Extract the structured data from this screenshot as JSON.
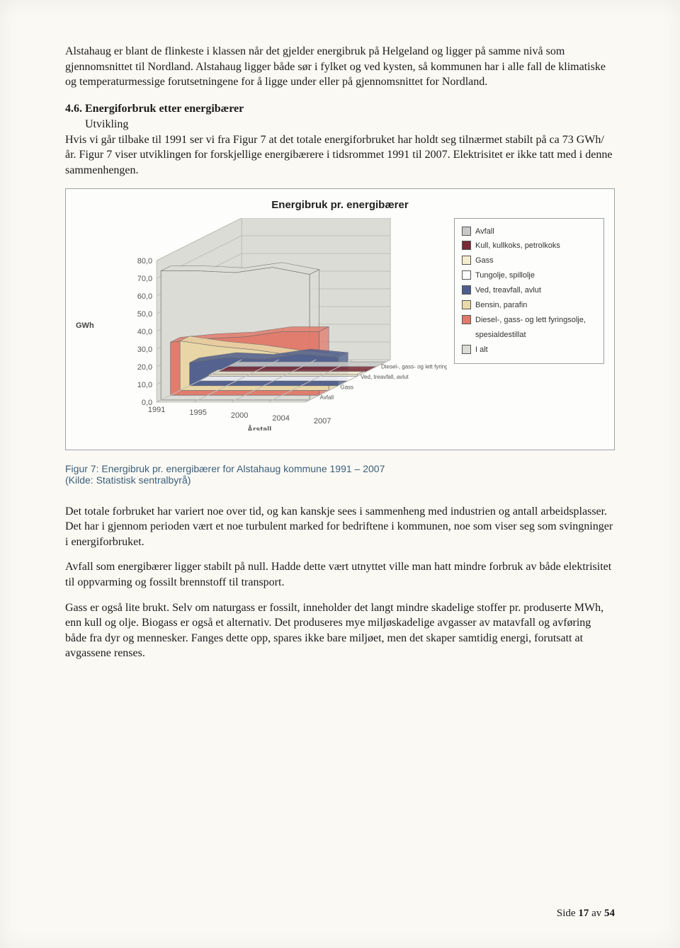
{
  "para1": "Alstahaug er blant de flinkeste i klassen når det gjelder energibruk på Helgeland og ligger på samme nivå som gjennomsnittet til Nordland. Alstahaug ligger både sør i fylket og ved kysten, så kommunen har i alle fall de klimatiske og temperaturmessige forutsetningene for å ligge under eller på gjennomsnittet for Nordland.",
  "section_number": "4.6. Energiforbruk etter energibærer",
  "subhead": "Utvikling",
  "para2": "Hvis vi går tilbake til 1991 ser vi fra Figur 7 at det totale energiforbruket har holdt seg tilnærmet stabilt på ca 73 GWh/år. Figur 7 viser utviklingen for forskjellige energibærere i tidsrommet 1991 til 2007. Elektrisitet er ikke tatt med i denne sammenhengen.",
  "chart": {
    "type": "area-3d",
    "title": "Energibruk pr. energibærer",
    "y_label": "GWh",
    "x_label": "Årstall",
    "y_ticks": [
      "0,0",
      "10,0",
      "20,0",
      "30,0",
      "40,0",
      "50,0",
      "60,0",
      "70,0",
      "80,0"
    ],
    "ylim": [
      0,
      80
    ],
    "x_ticks": [
      "1991",
      "1995",
      "2000",
      "2004",
      "2007"
    ],
    "depth_labels": [
      "Avfall",
      "Gass",
      "Ved, treavfall, avlut",
      "Diesel-, gass- og lett fyringsolje, spesialdestillat"
    ],
    "title_fontsize": 15,
    "tick_fontsize": 11,
    "background_color": "#fdfdfb",
    "floor_color": "#e0e0dc",
    "wall_color": "#dcdcd7",
    "grid_color": "#bfbfba",
    "series": [
      {
        "name": "Avfall",
        "color": "#c8c8c8",
        "values": [
          0,
          0,
          0,
          0,
          0
        ]
      },
      {
        "name": "Kull, kullkoks, petrolkoks",
        "color": "#7a2a36",
        "values": [
          0,
          0,
          0,
          0,
          0
        ]
      },
      {
        "name": "Gass",
        "color": "#f3eccf",
        "values": [
          1,
          1,
          1,
          1,
          1
        ]
      },
      {
        "name": "Tungolje, spillolje",
        "color": "#ffffff",
        "values": [
          0,
          0,
          0,
          0,
          0
        ]
      },
      {
        "name": "Ved, treavfall, avlut",
        "color": "#4e5e8e",
        "values": [
          13,
          16,
          15,
          18,
          16
        ]
      },
      {
        "name": "Bensin, parafin",
        "color": "#e9d9a8",
        "values": [
          28,
          25,
          23,
          20,
          18
        ]
      },
      {
        "name": "Diesel-, gass- og lett fyringsolje, spesialdestillat",
        "color": "#e07a6a",
        "values": [
          30,
          32,
          33,
          36,
          36
        ]
      },
      {
        "name": "I alt",
        "color": "#dcdcd7",
        "values": [
          73,
          73,
          72,
          75,
          71
        ]
      }
    ]
  },
  "legend": [
    {
      "label": "Avfall",
      "color": "#c8c8c8"
    },
    {
      "label": "Kull, kullkoks, petrolkoks",
      "color": "#7a2a36"
    },
    {
      "label": "Gass",
      "color": "#f3eccf"
    },
    {
      "label": "Tungolje, spillolje",
      "color": "#ffffff"
    },
    {
      "label": "Ved, treavfall, avlut",
      "color": "#4e5e8e"
    },
    {
      "label": "Bensin, parafin",
      "color": "#e9d9a8"
    },
    {
      "label": "Diesel-, gass- og lett fyringsolje, spesialdestillat",
      "color": "#e07a6a"
    },
    {
      "label": "I alt",
      "color": "#dcdcd7"
    }
  ],
  "figcaption_l1": "Figur 7: Energibruk pr. energibærer for Alstahaug kommune 1991 – 2007",
  "figcaption_l2": "(Kilde: Statistisk sentralbyrå)",
  "para3": "Det totale forbruket har variert noe over tid, og kan kanskje sees i sammenheng med industrien og antall arbeidsplasser. Det har i gjennom perioden vært et noe turbulent marked for bedriftene i kommunen, noe som viser seg som svingninger i energiforbruket.",
  "para4": "Avfall som energibærer ligger stabilt på null. Hadde dette vært utnyttet ville man hatt mindre forbruk av både elektrisitet til oppvarming og fossilt brennstoff til transport.",
  "para5": "Gass er også lite brukt. Selv om naturgass er fossilt, inneholder det langt mindre skadelige stoffer pr. produserte MWh, enn kull og olje. Biogass er også et alternativ. Det produseres mye miljøskadelige avgasser av matavfall og avføring både fra dyr og mennesker. Fanges dette opp, spares ikke bare miljøet, men det skaper samtidig energi, forutsatt at avgassene renses.",
  "footer_prefix": "Side ",
  "footer_page": "17",
  "footer_mid": " av ",
  "footer_total": "54"
}
